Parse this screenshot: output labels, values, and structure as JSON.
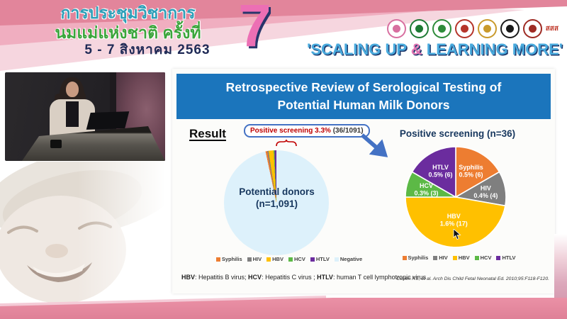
{
  "header": {
    "title_line1": "การประชุมวิชาการ",
    "title_line2": "นมแม่แห่งชาติ ครั้งที่",
    "title_line3": "5 - 7 สิงหาคม 2563",
    "edition_number": "7",
    "quote_prefix": "'SCALING UP ",
    "quote_amp": "&",
    "quote_suffix": " LEARNING MORE'",
    "logos": [
      {
        "name": "breastfeeding-center-logo",
        "color": "#D86FA0"
      },
      {
        "name": "health-department-logo",
        "color": "#1E7A34"
      },
      {
        "name": "ministry-public-health-logo",
        "color": "#2E8B3A"
      },
      {
        "name": "royal-college-logo",
        "color": "#B5342A"
      },
      {
        "name": "royal-emblem-logo",
        "color": "#C99A2C"
      },
      {
        "name": "university-emblem-logo",
        "color": "#1A1A1A"
      },
      {
        "name": "association-emblem-logo",
        "color": "#9E2B24"
      },
      {
        "name": "thaihealth-logo",
        "color": "#C0392B",
        "text": "สสส"
      }
    ]
  },
  "slide": {
    "title": "Retrospective Review of Serological Testing of Potential Human Milk Donors",
    "result_label": "Result",
    "callout": {
      "highlight": "Positive screening 3.3%",
      "detail": " (36/1091)"
    },
    "left_pie_center_line1": "Potential donors",
    "left_pie_center_line2": "(n=1,091)",
    "right_pie_title": "Positive screening (n=36)",
    "footnote_segments": [
      {
        "text": "HBV",
        "bold": true
      },
      {
        "text": ": Hepatitis B virus; ",
        "bold": false
      },
      {
        "text": "HCV",
        "bold": true
      },
      {
        "text": ": Hepatitis C virus ; ",
        "bold": false
      },
      {
        "text": "HTLV",
        "bold": true
      },
      {
        "text": ": human T cell lymphotropic virus",
        "bold": false
      }
    ],
    "citation": "Cohen RS, et al. Arch Dis Child Fetal Neonatal Ed. 2010;95:F118-F120."
  },
  "colors": {
    "slide_blue": "#1B75BC",
    "arrow_blue": "#4472C4",
    "callout_red": "#C00000",
    "navy_text": "#17375E",
    "banner_pink": "#E2859B",
    "quote_blue": "#49AADD",
    "quote_amp_pink": "#E277B5",
    "seven_pink": "#EC6FB4"
  },
  "chart_data": [
    {
      "type": "pie",
      "title": "Potential donors (n=1,091)",
      "n_total": 1091,
      "start_angle_deg": -12,
      "legend_position": "bottom",
      "slices": [
        {
          "label": "Syphilis",
          "count": 6,
          "color": "#ED7D31"
        },
        {
          "label": "HIV",
          "count": 4,
          "color": "#7F7F7F"
        },
        {
          "label": "HBV",
          "count": 17,
          "color": "#FFC000"
        },
        {
          "label": "HCV",
          "count": 3,
          "color": "#5CB946"
        },
        {
          "label": "HTLV",
          "count": 6,
          "color": "#6B2C9E"
        },
        {
          "label": "Negative",
          "count": 1055,
          "color": "#DDF1FB"
        }
      ]
    },
    {
      "type": "pie",
      "title": "Positive screening (n=36)",
      "n_total": 36,
      "start_angle_deg": 0,
      "legend_position": "bottom",
      "slices": [
        {
          "label": "Syphilis",
          "pct_label": "0.5% (6)",
          "count": 6,
          "color": "#ED7D31"
        },
        {
          "label": "HIV",
          "pct_label": "0.4% (4)",
          "count": 4,
          "color": "#7F7F7F"
        },
        {
          "label": "HBV",
          "pct_label": "1.6% (17)",
          "count": 17,
          "color": "#FFC000"
        },
        {
          "label": "HCV",
          "pct_label": "0.3% (3)",
          "count": 3,
          "color": "#5CB946"
        },
        {
          "label": "HTLV",
          "pct_label": "0.5% (6)",
          "count": 6,
          "color": "#6B2C9E"
        }
      ]
    }
  ]
}
